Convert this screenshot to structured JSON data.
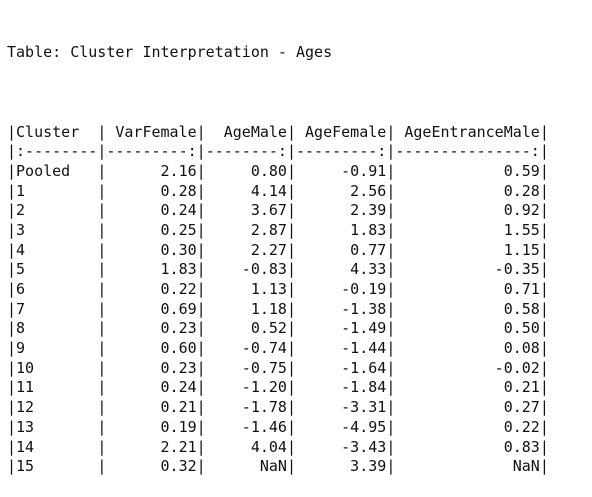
{
  "title": "Table: Cluster Interpretation - Ages",
  "columns": [
    {
      "label": "Cluster",
      "width": 9,
      "align": "left",
      "sep": ":--------"
    },
    {
      "label": "VarFemale",
      "width": 10,
      "align": "right",
      "sep": "---------:"
    },
    {
      "label": "AgeMale",
      "width": 9,
      "align": "right",
      "sep": "--------:"
    },
    {
      "label": "AgeFemale",
      "width": 10,
      "align": "right",
      "sep": "---------:"
    },
    {
      "label": "AgeEntranceMale",
      "width": 16,
      "align": "right",
      "sep": "---------------:"
    }
  ],
  "rows": [
    [
      "Pooled",
      "2.16",
      "0.80",
      "-0.91",
      "0.59"
    ],
    [
      "1",
      "0.28",
      "4.14",
      "2.56",
      "0.28"
    ],
    [
      "2",
      "0.24",
      "3.67",
      "2.39",
      "0.92"
    ],
    [
      "3",
      "0.25",
      "2.87",
      "1.83",
      "1.55"
    ],
    [
      "4",
      "0.30",
      "2.27",
      "0.77",
      "1.15"
    ],
    [
      "5",
      "1.83",
      "-0.83",
      "4.33",
      "-0.35"
    ],
    [
      "6",
      "0.22",
      "1.13",
      "-0.19",
      "0.71"
    ],
    [
      "7",
      "0.69",
      "1.18",
      "-1.38",
      "0.58"
    ],
    [
      "8",
      "0.23",
      "0.52",
      "-1.49",
      "0.50"
    ],
    [
      "9",
      "0.60",
      "-0.74",
      "-1.44",
      "0.08"
    ],
    [
      "10",
      "0.23",
      "-0.75",
      "-1.64",
      "-0.02"
    ],
    [
      "11",
      "0.24",
      "-1.20",
      "-1.84",
      "0.21"
    ],
    [
      "12",
      "0.21",
      "-1.78",
      "-3.31",
      "0.27"
    ],
    [
      "13",
      "0.19",
      "-1.46",
      "-4.95",
      "0.22"
    ],
    [
      "14",
      "2.21",
      "4.04",
      "-3.43",
      "0.83"
    ],
    [
      "15",
      "0.32",
      "NaN",
      "3.39",
      "NaN"
    ]
  ]
}
